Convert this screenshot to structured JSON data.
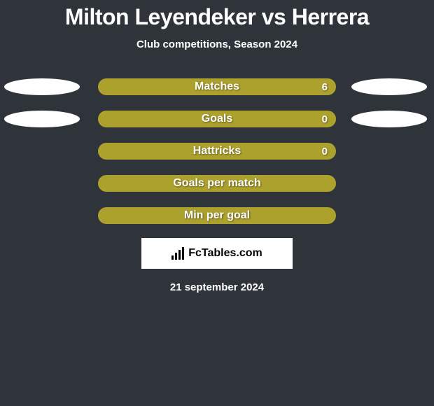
{
  "title": "Milton Leyendeker vs Herrera",
  "subtitle": "Club competitions, Season 2024",
  "background_color": "#2e343a",
  "text_color": "#ffffff",
  "ellipse_color": "#ffffff",
  "bar_color": "#ada12d",
  "logo_box_bg": "#ffffff",
  "logo_text": "FcTables.com",
  "date": "21 september 2024",
  "rows": [
    {
      "label": "Matches",
      "value": "6",
      "show_value": true,
      "show_left_ellipse": true,
      "show_right_ellipse": true
    },
    {
      "label": "Goals",
      "value": "0",
      "show_value": true,
      "show_left_ellipse": true,
      "show_right_ellipse": true
    },
    {
      "label": "Hattricks",
      "value": "0",
      "show_value": true,
      "show_left_ellipse": false,
      "show_right_ellipse": false
    },
    {
      "label": "Goals per match",
      "value": "",
      "show_value": false,
      "show_left_ellipse": false,
      "show_right_ellipse": false
    },
    {
      "label": "Min per goal",
      "value": "",
      "show_value": false,
      "show_left_ellipse": false,
      "show_right_ellipse": false
    }
  ]
}
